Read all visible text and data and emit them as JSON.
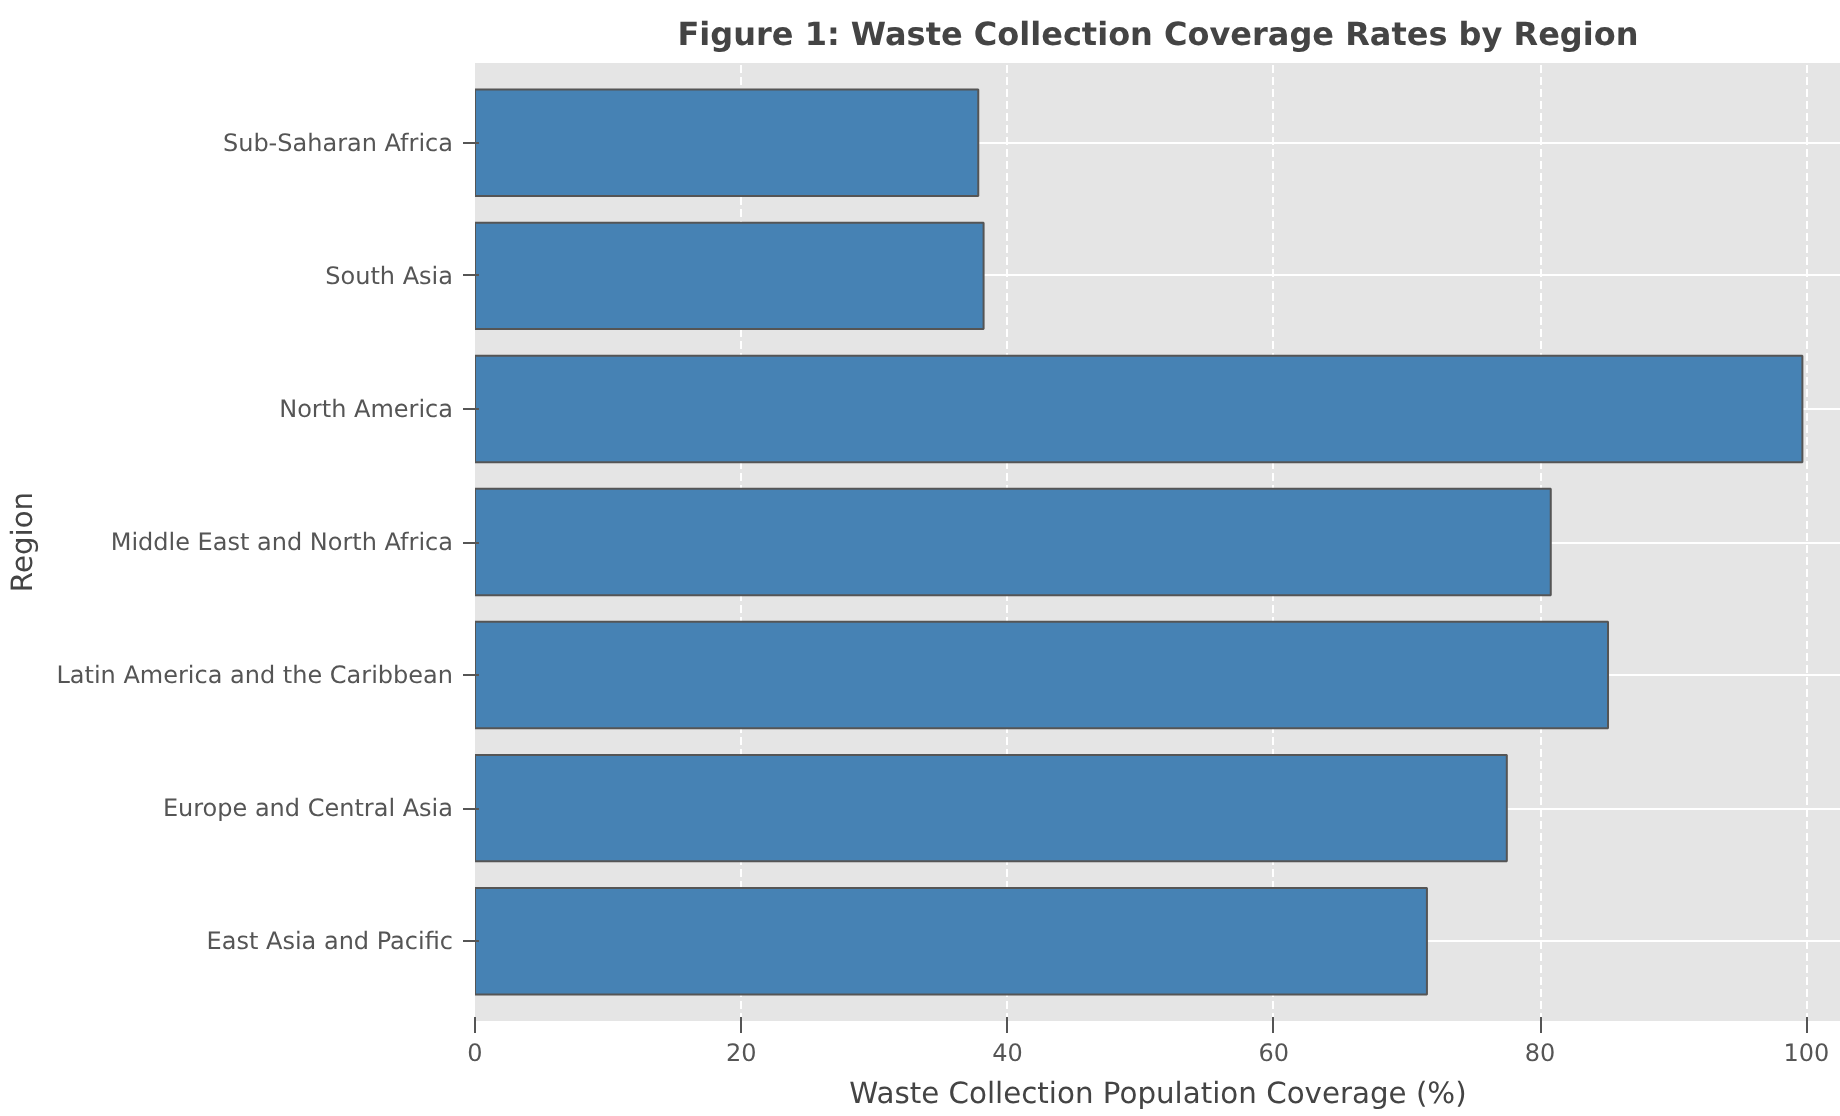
{
  "chart_data": {
    "type": "bar",
    "orientation": "horizontal",
    "title": "Figure 1: Waste Collection Coverage Rates by Region",
    "xlabel": "Waste Collection Population Coverage (%)",
    "ylabel": "Region",
    "categories": [
      "Sub-Saharan Africa",
      "South Asia",
      "North America",
      "Middle East and North Africa",
      "Latin America and the Caribbean",
      "Europe and Central Asia",
      "East Asia and Pacific"
    ],
    "values": [
      37.8,
      38.2,
      99.7,
      80.8,
      85.1,
      77.5,
      71.5
    ],
    "color": "#4682b4",
    "xlim": [
      0,
      102.6
    ],
    "xticks": [
      0,
      20,
      40,
      60,
      80,
      100
    ],
    "grid": true
  }
}
